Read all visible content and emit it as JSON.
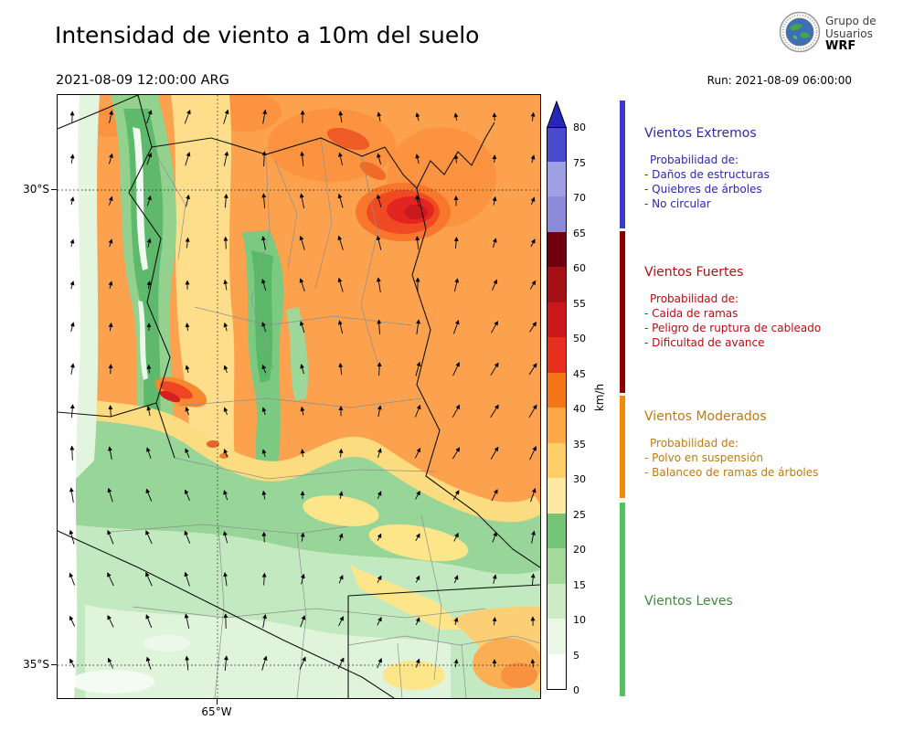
{
  "header": {
    "title": "Intensidad de viento a 10m del suelo",
    "valid_time": "2021-08-09 12:00:00 ARG",
    "run_label": "Run: 2021-08-09 06:00:00",
    "logo": {
      "line1": "Grupo de",
      "line2": "Usuarios",
      "line3": "WRF"
    }
  },
  "map": {
    "lat_tick_top": "30°S",
    "lat_tick_bottom": "35°S",
    "lon_tick": "65°W"
  },
  "colorbar": {
    "unit": "km/h",
    "ticks": [
      0,
      5,
      10,
      15,
      20,
      25,
      30,
      35,
      40,
      45,
      50,
      55,
      60,
      65,
      70,
      75,
      80
    ],
    "segment_colors": [
      "#ffffff",
      "#e9f7e4",
      "#cdebc4",
      "#a5d99c",
      "#74c476",
      "#fee9a2",
      "#fecf66",
      "#fda847",
      "#f47618",
      "#e8301f",
      "#cb181d",
      "#a50f15",
      "#700010",
      "#8a8ad8",
      "#9f9fe3",
      "#4a4acd"
    ],
    "arrow_color": "#2626bb"
  },
  "legend": {
    "sections": [
      {
        "title": "Vientos Extremos",
        "color": "#3a3ad1",
        "text_color": "#2a2aa8",
        "prob_label": "Probabilidad de:",
        "items": [
          "- Daños de estructuras",
          "- Quiebres de árboles",
          "- No circular"
        ]
      },
      {
        "title": "Vientos Fuertes",
        "color": "#8b0000",
        "text_color": "#b01010",
        "prob_label": "Probabilidad de:",
        "items": [
          "- Caida de ramas",
          "- Peligro de ruptura de cableado",
          "- Dificultad de avance"
        ]
      },
      {
        "title": "Vientos Moderados",
        "color": "#ef8e06",
        "text_color": "#c07a10",
        "prob_label": "Probabilidad de:",
        "items": [
          "- Polvo en suspensión",
          "- Balanceo de ramas de árboles"
        ]
      },
      {
        "title": "Vientos Leves",
        "color": "#55c25e",
        "text_color": "#3a8a3a",
        "prob_label": "",
        "items": []
      }
    ]
  }
}
